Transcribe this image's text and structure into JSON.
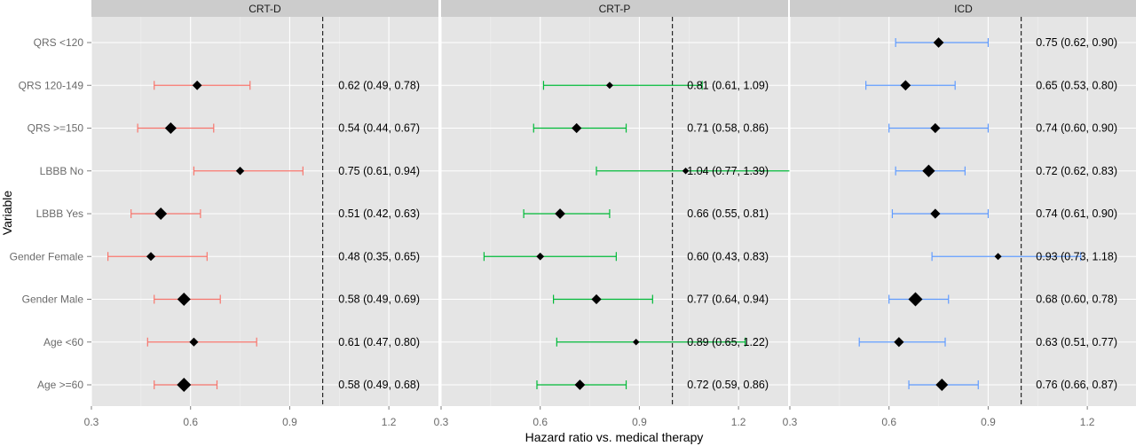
{
  "chart_data": {
    "type": "forest",
    "xlabel": "Hazard ratio vs. medical therapy",
    "ylabel": "Variable",
    "xlim": [
      0.3,
      1.35
    ],
    "xticks": [
      0.3,
      0.6,
      0.9,
      1.2
    ],
    "xtick_labels": [
      "0.3",
      "0.6",
      "0.9",
      "1.2"
    ],
    "reference_line": 1.0,
    "grid": true,
    "categories": [
      "QRS <120",
      "QRS 120-149",
      "QRS >=150",
      "LBBB No",
      "LBBB Yes",
      "Gender Female",
      "Gender Male",
      "Age <60",
      "Age >=60"
    ],
    "panels": [
      {
        "name": "CRT-D",
        "color": "#F8766D",
        "rows": [
          null,
          {
            "hr": 0.62,
            "lo": 0.49,
            "hi": 0.78,
            "label": "0.62 (0.49, 0.78)",
            "weight": 0.35
          },
          {
            "hr": 0.54,
            "lo": 0.44,
            "hi": 0.67,
            "label": "0.54 (0.44, 0.67)",
            "weight": 0.6
          },
          {
            "hr": 0.75,
            "lo": 0.61,
            "hi": 0.94,
            "label": "0.75 (0.61, 0.94)",
            "weight": 0.25
          },
          {
            "hr": 0.51,
            "lo": 0.42,
            "hi": 0.63,
            "label": "0.51 (0.42, 0.63)",
            "weight": 0.7
          },
          {
            "hr": 0.48,
            "lo": 0.35,
            "hi": 0.65,
            "label": "0.48 (0.35, 0.65)",
            "weight": 0.3
          },
          {
            "hr": 0.58,
            "lo": 0.49,
            "hi": 0.69,
            "label": "0.58 (0.49, 0.69)",
            "weight": 0.85
          },
          {
            "hr": 0.61,
            "lo": 0.47,
            "hi": 0.8,
            "label": "0.61 (0.47, 0.80)",
            "weight": 0.3
          },
          {
            "hr": 0.58,
            "lo": 0.49,
            "hi": 0.68,
            "label": "0.58 (0.49, 0.68)",
            "weight": 1.0
          }
        ]
      },
      {
        "name": "CRT-P",
        "color": "#00BA38",
        "rows": [
          null,
          {
            "hr": 0.81,
            "lo": 0.61,
            "hi": 1.09,
            "label": "0.81 (0.61, 1.09)",
            "weight": 0.15
          },
          {
            "hr": 0.71,
            "lo": 0.58,
            "hi": 0.86,
            "label": "0.71 (0.58, 0.86)",
            "weight": 0.4
          },
          {
            "hr": 1.04,
            "lo": 0.77,
            "hi": 1.39,
            "label": "1.04 (0.77, 1.39)",
            "weight": 0.12
          },
          {
            "hr": 0.66,
            "lo": 0.55,
            "hi": 0.81,
            "label": "0.66 (0.55, 0.81)",
            "weight": 0.45
          },
          {
            "hr": 0.6,
            "lo": 0.43,
            "hi": 0.83,
            "label": "0.60 (0.43, 0.83)",
            "weight": 0.2
          },
          {
            "hr": 0.77,
            "lo": 0.64,
            "hi": 0.94,
            "label": "0.77 (0.64, 0.94)",
            "weight": 0.4
          },
          {
            "hr": 0.89,
            "lo": 0.65,
            "hi": 1.22,
            "label": "0.89 (0.65, 1.22)",
            "weight": 0.12
          },
          {
            "hr": 0.72,
            "lo": 0.59,
            "hi": 0.86,
            "label": "0.72 (0.59, 0.86)",
            "weight": 0.45
          }
        ]
      },
      {
        "name": "ICD",
        "color": "#619CFF",
        "rows": [
          {
            "hr": 0.75,
            "lo": 0.62,
            "hi": 0.9,
            "label": "0.75 (0.62, 0.90)",
            "weight": 0.45
          },
          {
            "hr": 0.65,
            "lo": 0.53,
            "hi": 0.8,
            "label": "0.65 (0.53, 0.80)",
            "weight": 0.45
          },
          {
            "hr": 0.74,
            "lo": 0.6,
            "hi": 0.9,
            "label": "0.74 (0.60, 0.90)",
            "weight": 0.4
          },
          {
            "hr": 0.72,
            "lo": 0.62,
            "hi": 0.83,
            "label": "0.72 (0.62, 0.83)",
            "weight": 0.75
          },
          {
            "hr": 0.74,
            "lo": 0.61,
            "hi": 0.9,
            "label": "0.74 (0.61, 0.90)",
            "weight": 0.4
          },
          {
            "hr": 0.93,
            "lo": 0.73,
            "hi": 1.18,
            "label": "0.93 (0.73, 1.18)",
            "weight": 0.15
          },
          {
            "hr": 0.68,
            "lo": 0.6,
            "hi": 0.78,
            "label": "0.68 (0.60, 0.78)",
            "weight": 1.0
          },
          {
            "hr": 0.63,
            "lo": 0.51,
            "hi": 0.77,
            "label": "0.63 (0.51, 0.77)",
            "weight": 0.4
          },
          {
            "hr": 0.76,
            "lo": 0.66,
            "hi": 0.87,
            "label": "0.76 (0.66, 0.87)",
            "weight": 0.7
          }
        ]
      }
    ]
  }
}
